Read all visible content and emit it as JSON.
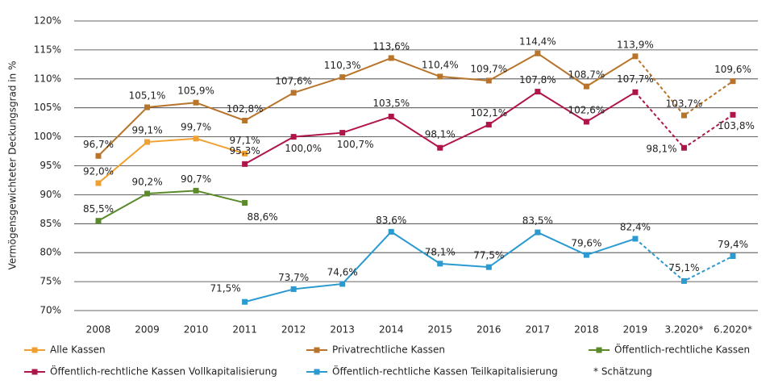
{
  "chart_data": {
    "type": "line",
    "y_label": "Vermögensgewichteter Deckungsgrad in %",
    "categories": [
      "2008",
      "2009",
      "2010",
      "2011",
      "2012",
      "2013",
      "2014",
      "2015",
      "2016",
      "2017",
      "2018",
      "2019",
      "3.2020*",
      "6.2020*"
    ],
    "series": [
      {
        "name": "Alle Kassen",
        "color": "#f0a030",
        "values": [
          92.0,
          99.1,
          99.7,
          97.1,
          null,
          null,
          null,
          null,
          null,
          null,
          null,
          null,
          null,
          null
        ],
        "value_labels": [
          "92,0%",
          "99,1%",
          "99,7%",
          "97,1%",
          null,
          null,
          null,
          null,
          null,
          null,
          null,
          null,
          null,
          null
        ]
      },
      {
        "name": "Privatrechtliche Kassen",
        "color": "#b8742a",
        "values": [
          96.7,
          105.1,
          105.9,
          102.8,
          107.6,
          110.3,
          113.6,
          110.4,
          109.7,
          114.4,
          108.7,
          113.9,
          103.7,
          109.6
        ],
        "value_labels": [
          "96,7%",
          "105,1%",
          "105,9%",
          "102,8%",
          "107,6%",
          "110,3%",
          "113,6%",
          "110,4%",
          "109,7%",
          "114,4%",
          "108,7%",
          "113,9%",
          "103,7%",
          "109,6%"
        ]
      },
      {
        "name": "Öffentlich-rechtliche Kassen",
        "color": "#5a8a2a",
        "values": [
          85.5,
          90.2,
          90.7,
          88.6,
          null,
          null,
          null,
          null,
          null,
          null,
          null,
          null,
          null,
          null
        ],
        "value_labels": [
          "85,5%",
          "90,2%",
          "90,7%",
          "88,6%",
          null,
          null,
          null,
          null,
          null,
          null,
          null,
          null,
          null,
          null
        ]
      },
      {
        "name": "Öffentlich-rechtliche Kassen Vollkapitalisierung",
        "color": "#b0154a",
        "values": [
          null,
          null,
          null,
          95.3,
          100.0,
          100.7,
          103.5,
          98.1,
          102.1,
          107.8,
          102.6,
          107.7,
          98.1,
          103.8
        ],
        "value_labels": [
          null,
          null,
          null,
          "95,3%",
          "100,0%",
          "100,7%",
          "103,5%",
          "98,1%",
          "102,1%",
          "107,8%",
          "102,6%",
          "107,7%",
          "98,1%",
          "103,8%"
        ]
      },
      {
        "name": "Öffentlich-rechtliche Kassen Teilkapitalisierung",
        "color": "#2a9ad0",
        "values": [
          null,
          null,
          null,
          71.5,
          73.7,
          74.6,
          83.6,
          78.1,
          77.5,
          83.5,
          79.6,
          82.4,
          75.1,
          79.4
        ],
        "value_labels": [
          null,
          null,
          null,
          "71,5%",
          "73,7%",
          "74,6%",
          "83,6%",
          "78,1%",
          "77,5%",
          "83,5%",
          "79,6%",
          "82,4%",
          "75,1%",
          "79,4%"
        ]
      }
    ],
    "note": "* Schätzung",
    "ylim": [
      70,
      120
    ],
    "yticks": [
      {
        "value": 70,
        "label": "70%"
      },
      {
        "value": 75,
        "label": "75%"
      },
      {
        "value": 80,
        "label": "80%"
      },
      {
        "value": 85,
        "label": "85%"
      },
      {
        "value": 90,
        "label": "90%"
      },
      {
        "value": 95,
        "label": "95%"
      },
      {
        "value": 100,
        "label": "100%"
      },
      {
        "value": 105,
        "label": "105%"
      },
      {
        "value": 110,
        "label": "110%"
      },
      {
        "value": 115,
        "label": "115%"
      },
      {
        "value": 120,
        "label": "120%"
      }
    ],
    "grid": true
  }
}
